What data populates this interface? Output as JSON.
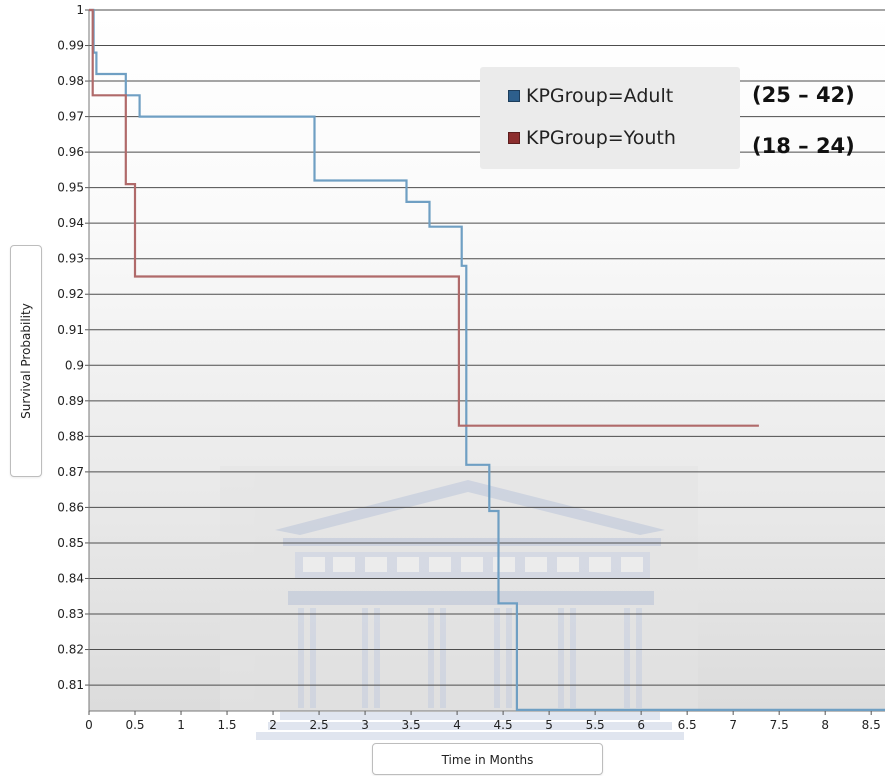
{
  "chart_data": {
    "type": "line",
    "step": true,
    "title": "",
    "xlabel": "Time in Months",
    "ylabel": "Survival Probability",
    "xlim": [
      0,
      8.65
    ],
    "ylim": [
      0.8027,
      1.0
    ],
    "x_ticks": [
      0,
      0.5,
      1,
      1.5,
      2,
      2.5,
      3,
      3.5,
      4,
      4.5,
      5,
      5.5,
      6,
      6.5,
      7,
      7.5,
      8,
      8.5
    ],
    "x_tick_labels": [
      "0",
      "0.5",
      "1",
      "1.5",
      "2",
      "2.5",
      "3",
      "3.5",
      "4",
      "4.5",
      "5",
      "5.5",
      "6",
      "6.5",
      "7",
      "7.5",
      "8",
      "8.5"
    ],
    "y_ticks": [
      0.81,
      0.82,
      0.83,
      0.84,
      0.85,
      0.86,
      0.87,
      0.88,
      0.89,
      0.9,
      0.91,
      0.92,
      0.93,
      0.94,
      0.95,
      0.96,
      0.97,
      0.98,
      0.99,
      1.0
    ],
    "y_tick_labels": [
      "0.81",
      "0.82",
      "0.83",
      "0.84",
      "0.85",
      "0.86",
      "0.87",
      "0.88",
      "0.89",
      "0.9",
      "0.91",
      "0.92",
      "0.93",
      "0.94",
      "0.95",
      "0.96",
      "0.97",
      "0.98",
      "0.99",
      "1"
    ],
    "grid": "horizontal",
    "legend_position": "top-right",
    "series": [
      {
        "name": "KPGroup=Adult",
        "color": "#6f9fc3",
        "x": [
          0,
          0.05,
          0.08,
          0.4,
          0.55,
          2.45,
          3.45,
          3.7,
          4.05,
          4.1,
          4.35,
          4.45,
          4.65,
          8.65
        ],
        "y": [
          1.0,
          0.988,
          0.982,
          0.976,
          0.97,
          0.952,
          0.946,
          0.939,
          0.928,
          0.872,
          0.859,
          0.833,
          0.803,
          0.803
        ]
      },
      {
        "name": "KPGroup=Youth",
        "color": "#b06a6a",
        "x": [
          0,
          0.04,
          0.4,
          0.5,
          4.02,
          7.28
        ],
        "y": [
          1.0,
          0.976,
          0.951,
          0.925,
          0.883,
          0.883
        ]
      }
    ]
  },
  "legend": {
    "items": [
      {
        "label": "KPGroup=Adult",
        "color": "#2d5f8c"
      },
      {
        "label": "KPGroup=Youth",
        "color": "#8c2d2d"
      }
    ]
  },
  "annotations": {
    "adult_age_range": "(25 – 42)",
    "youth_age_range": "(18 – 24)"
  },
  "colors": {
    "grid": "#4d4d4d",
    "watermark": "#c5cde0"
  }
}
